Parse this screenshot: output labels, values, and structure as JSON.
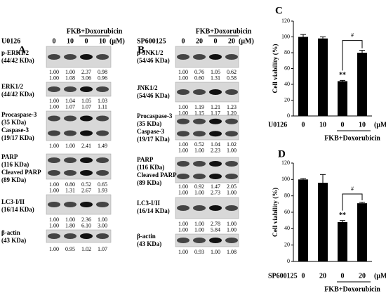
{
  "panel_a": {
    "label": "A",
    "treatment_label": "FKB+Doxorubicin",
    "drug": "U0126",
    "doses": [
      "0",
      "10",
      "0",
      "10"
    ],
    "unit": "(μM)",
    "rows": [
      {
        "labels": [
          "p-ERK1/2",
          "(44/42 KDa)"
        ],
        "quant": [
          [
            "1.00",
            "1.00",
            "2.37",
            "0.98"
          ],
          [
            "1.00",
            "1.08",
            "3.06",
            "0.96"
          ]
        ]
      },
      {
        "labels": [
          "ERK1/2",
          "(44/42 KDa)"
        ],
        "quant": [
          [
            "1.00",
            "1.04",
            "1.05",
            "1.03"
          ],
          [
            "1.00",
            "1.07",
            "1.07",
            "1.11"
          ]
        ]
      },
      {
        "labels": [
          "Procaspase-3",
          "(35 KDa)",
          "Caspase-3",
          "(19/17 KDa)"
        ],
        "quant": [
          [
            "1.00",
            "1.00",
            "2.41",
            "1.49"
          ]
        ]
      },
      {
        "labels": [
          "PARP",
          "(116 KDa)",
          "Cleaved PARP",
          "(89 KDa)"
        ],
        "quant": [
          [
            "1.00",
            "0.80",
            "0.52",
            "0.65"
          ],
          [
            "1.00",
            "1.31",
            "2.67",
            "1.93"
          ]
        ]
      },
      {
        "labels": [
          "LC3-I/II",
          "(16/14 KDa)"
        ],
        "quant": [
          [
            "1.00",
            "1.00",
            "2.36",
            "1.00"
          ],
          [
            "1.00",
            "1.80",
            "6.10",
            "3.00"
          ]
        ]
      },
      {
        "labels": [
          "β-actin",
          "(43 KDa)"
        ],
        "quant": [
          [
            "1.00",
            "0.95",
            "1.02",
            "1.07"
          ]
        ]
      }
    ]
  },
  "panel_b": {
    "label": "B",
    "treatment_label": "FKB+Doxorubicin",
    "drug": "SP600125",
    "doses": [
      "0",
      "20",
      "0",
      "20"
    ],
    "unit": "(μM)",
    "rows": [
      {
        "labels": [
          "p-JNK1/2",
          "(54/46 KDa)"
        ],
        "quant": [
          [
            "1.00",
            "0.76",
            "1.05",
            "0.62"
          ],
          [
            "1.00",
            "0.60",
            "1.31",
            "0.58"
          ]
        ]
      },
      {
        "labels": [
          "JNK1/2",
          "(54/46 KDa)"
        ],
        "quant": [
          [
            "1.00",
            "1.19",
            "1.21",
            "1.23"
          ],
          [
            "1.00",
            "1.15",
            "1.17",
            "1.20"
          ]
        ]
      },
      {
        "labels": [
          "Procaspase-3",
          "(35 KDa)",
          "Caspase-3",
          "(19/17 KDa)"
        ],
        "quant": [
          [
            "1.00",
            "0.52",
            "1.04",
            "1.02"
          ],
          [
            "1.00",
            "1.00",
            "2.23",
            "1.00"
          ]
        ]
      },
      {
        "labels": [
          "PARP",
          "(116 KDa)",
          "Cleaved PARP",
          "(89 KDa)"
        ],
        "quant": [
          [
            "1.00",
            "0.92",
            "1.47",
            "2.05"
          ],
          [
            "1.00",
            "1.00",
            "2.73",
            "1.00"
          ]
        ]
      },
      {
        "labels": [
          "LC3-I/II",
          "(16/14 KDa)"
        ],
        "quant": [
          [
            "1.00",
            "1.00",
            "2.78",
            "1.00"
          ],
          [
            "1.00",
            "1.00",
            "5.84",
            "1.00"
          ]
        ]
      },
      {
        "labels": [
          "β-actin",
          "(43 KDa)"
        ],
        "quant": [
          [
            "1.00",
            "0.93",
            "1.00",
            "1.08"
          ]
        ]
      }
    ]
  },
  "chart_data": [
    {
      "type": "bar",
      "panel_label": "C",
      "ylabel": "Cell viability (%)",
      "x_label": "U0126",
      "unit_label": "(μM)",
      "group_label": "FKB+Doxorubicin",
      "categories": [
        "0",
        "10",
        "0",
        "10"
      ],
      "values": [
        100,
        98,
        44,
        80
      ],
      "errors": [
        3,
        2,
        1,
        3
      ],
      "color": "#000000",
      "significance": [
        null,
        null,
        "**",
        null
      ],
      "comparison_label": "#",
      "ylim": [
        0,
        120
      ],
      "yticks": [
        0,
        20,
        40,
        60,
        80,
        100,
        120
      ]
    },
    {
      "type": "bar",
      "panel_label": "D",
      "ylabel": "Cell viability (%)",
      "x_label": "SP600125",
      "unit_label": "(μM)",
      "group_label": "FKB+Doxorubicin",
      "categories": [
        "0",
        "20",
        "0",
        "20"
      ],
      "values": [
        100,
        96,
        48,
        71
      ],
      "errors": [
        1,
        10,
        2,
        1
      ],
      "color": "#000000",
      "significance": [
        null,
        null,
        "**",
        null
      ],
      "comparison_label": "#",
      "ylim": [
        0,
        120
      ],
      "yticks": [
        0,
        20,
        40,
        60,
        80,
        100,
        120
      ]
    }
  ]
}
